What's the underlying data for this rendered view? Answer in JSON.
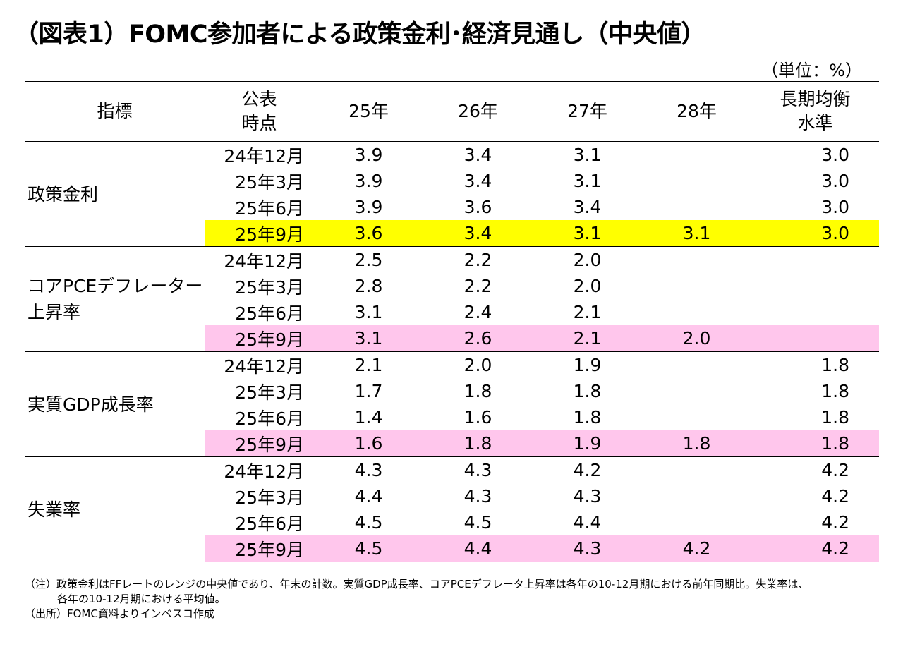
{
  "title": "（図表1）FOMC参加者による政策金利･経済見通し（中央値）",
  "unit": "（単位：%）",
  "header": {
    "indicator": "指標",
    "announce_line1": "公表",
    "announce_line2": "時点",
    "y25": "25年",
    "y26": "26年",
    "y27": "27年",
    "y28": "28年",
    "longrun_line1": "長期均衡",
    "longrun_line2": "水準"
  },
  "sections": [
    {
      "name_lines": [
        "政策金利"
      ],
      "highlight": "#ffff00",
      "rows": [
        {
          "date": "24年12月",
          "v25": "3.9",
          "v26": "3.4",
          "v27": "3.1",
          "v28": "",
          "lr": "3.0"
        },
        {
          "date": "25年3月",
          "v25": "3.9",
          "v26": "3.4",
          "v27": "3.1",
          "v28": "",
          "lr": "3.0"
        },
        {
          "date": "25年6月",
          "v25": "3.9",
          "v26": "3.6",
          "v27": "3.4",
          "v28": "",
          "lr": "3.0"
        },
        {
          "date": "25年9月",
          "v25": "3.6",
          "v26": "3.4",
          "v27": "3.1",
          "v28": "3.1",
          "lr": "3.0"
        }
      ]
    },
    {
      "name_lines": [
        "コアPCEデフレーター",
        "上昇率"
      ],
      "highlight": "#ffc6ec",
      "rows": [
        {
          "date": "24年12月",
          "v25": "2.5",
          "v26": "2.2",
          "v27": "2.0",
          "v28": "",
          "lr": ""
        },
        {
          "date": "25年3月",
          "v25": "2.8",
          "v26": "2.2",
          "v27": "2.0",
          "v28": "",
          "lr": ""
        },
        {
          "date": "25年6月",
          "v25": "3.1",
          "v26": "2.4",
          "v27": "2.1",
          "v28": "",
          "lr": ""
        },
        {
          "date": "25年9月",
          "v25": "3.1",
          "v26": "2.6",
          "v27": "2.1",
          "v28": "2.0",
          "lr": ""
        }
      ]
    },
    {
      "name_lines": [
        "実質GDP成長率"
      ],
      "highlight": "#ffc6ec",
      "rows": [
        {
          "date": "24年12月",
          "v25": "2.1",
          "v26": "2.0",
          "v27": "1.9",
          "v28": "",
          "lr": "1.8"
        },
        {
          "date": "25年3月",
          "v25": "1.7",
          "v26": "1.8",
          "v27": "1.8",
          "v28": "",
          "lr": "1.8"
        },
        {
          "date": "25年6月",
          "v25": "1.4",
          "v26": "1.6",
          "v27": "1.8",
          "v28": "",
          "lr": "1.8"
        },
        {
          "date": "25年9月",
          "v25": "1.6",
          "v26": "1.8",
          "v27": "1.9",
          "v28": "1.8",
          "lr": "1.8"
        }
      ]
    },
    {
      "name_lines": [
        "失業率"
      ],
      "highlight": "#ffc6ec",
      "rows": [
        {
          "date": "24年12月",
          "v25": "4.3",
          "v26": "4.3",
          "v27": "4.2",
          "v28": "",
          "lr": "4.2"
        },
        {
          "date": "25年3月",
          "v25": "4.4",
          "v26": "4.3",
          "v27": "4.3",
          "v28": "",
          "lr": "4.2"
        },
        {
          "date": "25年6月",
          "v25": "4.5",
          "v26": "4.5",
          "v27": "4.4",
          "v28": "",
          "lr": "4.2"
        },
        {
          "date": "25年9月",
          "v25": "4.5",
          "v26": "4.4",
          "v27": "4.3",
          "v28": "4.2",
          "lr": "4.2"
        }
      ]
    }
  ],
  "notes": {
    "note1": "（注）政策金利はFFレートのレンジの中央値であり、年末の計数。実質GDP成長率、コアPCEデフレータ上昇率は各年の10-12月期における前年同期比。失業率は、",
    "note1_cont": "各年の10-12月期における平均値。",
    "source": "（出所）FOMC資料よりインベスコ作成"
  },
  "colors": {
    "highlight_yellow": "#ffff00",
    "highlight_pink": "#ffc6ec"
  }
}
